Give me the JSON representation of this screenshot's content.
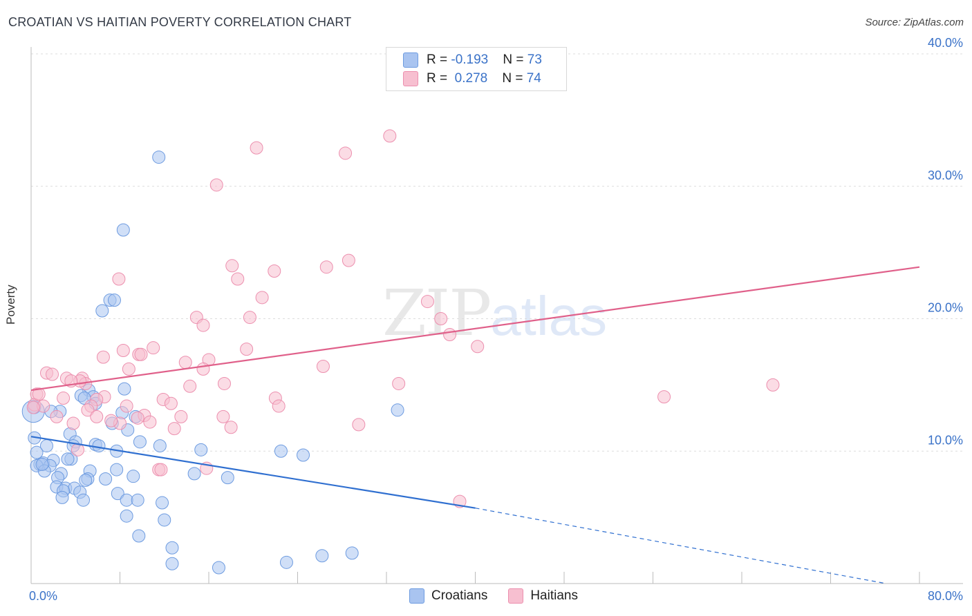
{
  "title": "CROATIAN VS HAITIAN POVERTY CORRELATION CHART",
  "source": "Source: ZipAtlas.com",
  "watermark": {
    "zip": "ZIP",
    "atlas": "atlas"
  },
  "legend": {
    "rows": [
      {
        "r_label": "R = ",
        "r_value": "-0.193",
        "n_label": "N = ",
        "n_value": "73",
        "color": "#a9c4f0",
        "stroke": "#6d9be0"
      },
      {
        "r_label": "R = ",
        "r_value": "0.278",
        "n_label": "N = ",
        "n_value": "74",
        "color": "#f7bfd0",
        "stroke": "#ec8fae"
      }
    ]
  },
  "bottom_legend": [
    {
      "label": "Croatians",
      "color": "#a9c4f0",
      "stroke": "#6d9be0"
    },
    {
      "label": "Haitians",
      "color": "#f7bfd0",
      "stroke": "#ec8fae"
    }
  ],
  "chart_data": {
    "type": "scatter",
    "title": "CROATIAN VS HAITIAN POVERTY CORRELATION CHART",
    "xlabel": "",
    "ylabel": "Poverty",
    "xlim": [
      0,
      80
    ],
    "ylim": [
      0,
      40
    ],
    "x_tick_labels": [
      "0.0%",
      "80.0%"
    ],
    "y_tick_labels": [
      "10.0%",
      "20.0%",
      "30.0%",
      "40.0%"
    ],
    "y_ticks": [
      10,
      20,
      30,
      40
    ],
    "grid": true,
    "series": [
      {
        "name": "Croatians",
        "color": "#6d9be0",
        "fill": "#a9c4f0",
        "trend": {
          "x0": 0,
          "y0": 11.1,
          "x1": 40,
          "y1": 5.7,
          "dash_to_x": 77,
          "dash_to_y": 0.0,
          "color": "#2f6fd0"
        },
        "points": [
          [
            11.5,
            32.2
          ],
          [
            8.3,
            26.7
          ],
          [
            7.1,
            21.4
          ],
          [
            7.5,
            21.4
          ],
          [
            6.4,
            20.6
          ],
          [
            8.4,
            14.7
          ],
          [
            5.2,
            14.6
          ],
          [
            4.5,
            14.2
          ],
          [
            5.6,
            14.1
          ],
          [
            4.8,
            14.0
          ],
          [
            5.8,
            13.6
          ],
          [
            2.6,
            13.0
          ],
          [
            8.2,
            12.9
          ],
          [
            9.4,
            12.6
          ],
          [
            0.3,
            13.3
          ],
          [
            33.0,
            13.1
          ],
          [
            1.8,
            13.0
          ],
          [
            7.3,
            12.1
          ],
          [
            8.7,
            11.6
          ],
          [
            3.5,
            11.3
          ],
          [
            4.0,
            10.7
          ],
          [
            5.8,
            10.5
          ],
          [
            9.8,
            10.7
          ],
          [
            0.3,
            11.0
          ],
          [
            1.4,
            10.4
          ],
          [
            11.6,
            10.4
          ],
          [
            3.8,
            10.4
          ],
          [
            6.1,
            10.4
          ],
          [
            15.3,
            10.1
          ],
          [
            22.5,
            10.0
          ],
          [
            24.5,
            9.7
          ],
          [
            7.7,
            10.0
          ],
          [
            0.5,
            9.9
          ],
          [
            0.8,
            9.0
          ],
          [
            1.1,
            9.1
          ],
          [
            2.0,
            9.3
          ],
          [
            3.6,
            9.4
          ],
          [
            0.5,
            8.9
          ],
          [
            1.7,
            8.9
          ],
          [
            1.2,
            8.5
          ],
          [
            5.3,
            8.5
          ],
          [
            7.7,
            8.6
          ],
          [
            2.7,
            8.3
          ],
          [
            14.7,
            8.3
          ],
          [
            17.7,
            8.0
          ],
          [
            9.2,
            8.1
          ],
          [
            2.4,
            8.0
          ],
          [
            5.1,
            7.9
          ],
          [
            6.7,
            7.9
          ],
          [
            4.9,
            7.8
          ],
          [
            2.3,
            7.3
          ],
          [
            3.1,
            7.2
          ],
          [
            3.9,
            7.2
          ],
          [
            2.9,
            7.0
          ],
          [
            4.4,
            6.9
          ],
          [
            7.8,
            6.8
          ],
          [
            2.8,
            6.5
          ],
          [
            4.7,
            6.3
          ],
          [
            8.6,
            6.3
          ],
          [
            9.6,
            6.3
          ],
          [
            11.8,
            6.1
          ],
          [
            8.6,
            5.1
          ],
          [
            12.0,
            4.8
          ],
          [
            9.7,
            3.6
          ],
          [
            12.7,
            2.7
          ],
          [
            26.2,
            2.1
          ],
          [
            28.9,
            2.3
          ],
          [
            23.0,
            1.6
          ],
          [
            12.7,
            1.5
          ],
          [
            16.9,
            1.2
          ],
          [
            0.2,
            13.0
          ],
          [
            1.0,
            9.0
          ],
          [
            3.3,
            9.4
          ]
        ]
      },
      {
        "name": "Haitians",
        "color": "#ec8fae",
        "fill": "#f7bfd0",
        "trend": {
          "x0": 0,
          "y0": 14.6,
          "x1": 80,
          "y1": 23.9,
          "color": "#e0608a"
        },
        "points": [
          [
            32.3,
            33.8
          ],
          [
            20.3,
            32.9
          ],
          [
            28.3,
            32.5
          ],
          [
            16.7,
            30.1
          ],
          [
            28.6,
            24.4
          ],
          [
            18.1,
            24.0
          ],
          [
            26.6,
            23.9
          ],
          [
            21.9,
            23.6
          ],
          [
            7.9,
            23.0
          ],
          [
            18.6,
            23.0
          ],
          [
            20.8,
            21.6
          ],
          [
            35.7,
            21.3
          ],
          [
            14.9,
            20.1
          ],
          [
            19.7,
            20.1
          ],
          [
            36.9,
            20.0
          ],
          [
            15.5,
            19.5
          ],
          [
            37.7,
            18.8
          ],
          [
            40.2,
            17.9
          ],
          [
            11.0,
            17.8
          ],
          [
            8.3,
            17.6
          ],
          [
            19.4,
            17.7
          ],
          [
            9.7,
            17.3
          ],
          [
            9.9,
            17.3
          ],
          [
            6.5,
            17.1
          ],
          [
            13.9,
            16.7
          ],
          [
            16.0,
            16.9
          ],
          [
            26.3,
            16.4
          ],
          [
            15.5,
            16.2
          ],
          [
            8.8,
            16.2
          ],
          [
            1.4,
            15.9
          ],
          [
            1.9,
            15.8
          ],
          [
            3.2,
            15.5
          ],
          [
            4.6,
            15.5
          ],
          [
            4.9,
            15.1
          ],
          [
            4.4,
            15.3
          ],
          [
            17.4,
            15.1
          ],
          [
            14.3,
            14.9
          ],
          [
            33.1,
            15.1
          ],
          [
            66.8,
            15.0
          ],
          [
            0.5,
            14.3
          ],
          [
            2.9,
            14.0
          ],
          [
            6.6,
            14.1
          ],
          [
            11.9,
            13.9
          ],
          [
            22.0,
            14.0
          ],
          [
            57.0,
            14.1
          ],
          [
            5.9,
            13.9
          ],
          [
            0.3,
            13.5
          ],
          [
            5.4,
            13.4
          ],
          [
            12.6,
            13.6
          ],
          [
            1.1,
            13.4
          ],
          [
            8.6,
            13.4
          ],
          [
            22.3,
            13.4
          ],
          [
            5.1,
            13.1
          ],
          [
            10.2,
            12.7
          ],
          [
            13.5,
            12.6
          ],
          [
            17.3,
            12.6
          ],
          [
            2.3,
            12.6
          ],
          [
            9.6,
            12.5
          ],
          [
            5.9,
            12.6
          ],
          [
            8.0,
            12.1
          ],
          [
            10.7,
            12.2
          ],
          [
            18.0,
            11.8
          ],
          [
            29.5,
            12.0
          ],
          [
            12.9,
            11.7
          ],
          [
            3.8,
            12.1
          ],
          [
            4.2,
            10.1
          ],
          [
            11.5,
            8.6
          ],
          [
            15.8,
            8.7
          ],
          [
            11.7,
            8.6
          ],
          [
            38.6,
            6.2
          ],
          [
            0.2,
            13.3
          ],
          [
            0.7,
            14.3
          ],
          [
            7.2,
            12.3
          ],
          [
            3.6,
            15.3
          ]
        ]
      }
    ]
  }
}
